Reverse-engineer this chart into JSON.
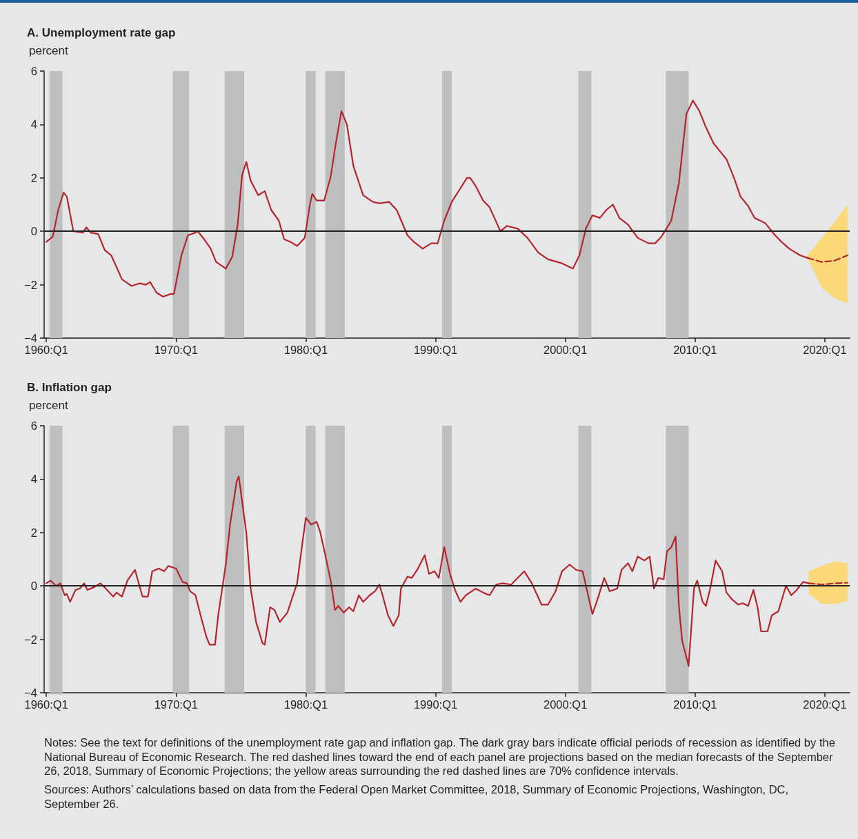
{
  "chart_data": [
    {
      "type": "line",
      "title": "A. Unemployment rate gap",
      "ylabel": "percent",
      "xlim": [
        "1959-11",
        "2021-12"
      ],
      "xticks": [
        {
          "value": "1960-01",
          "label": "1960:Q1"
        },
        {
          "value": "1970-01",
          "label": "1970:Q1"
        },
        {
          "value": "1980-01",
          "label": "1980:Q1"
        },
        {
          "value": "1990-01",
          "label": "1990:Q1"
        },
        {
          "value": "2000-01",
          "label": "2000:Q1"
        },
        {
          "value": "2010-01",
          "label": "2010:Q1"
        },
        {
          "value": "2020-01",
          "label": "2020:Q1"
        }
      ],
      "ylim": [
        -4,
        6
      ],
      "yticks": [
        -4,
        -2,
        0,
        2,
        4,
        6
      ],
      "bands": [
        {
          "axis": "x",
          "from": "1960-04",
          "to": "1961-04",
          "color": "#bcbec0"
        },
        {
          "axis": "x",
          "from": "1969-10",
          "to": "1971-01",
          "color": "#bcbec0"
        },
        {
          "axis": "x",
          "from": "1973-10",
          "to": "1975-04",
          "color": "#bcbec0"
        },
        {
          "axis": "x",
          "from": "1980-01",
          "to": "1980-10",
          "color": "#bcbec0"
        },
        {
          "axis": "x",
          "from": "1981-07",
          "to": "1983-01",
          "color": "#bcbec0"
        },
        {
          "axis": "x",
          "from": "1990-07",
          "to": "1991-04",
          "color": "#bcbec0"
        },
        {
          "axis": "x",
          "from": "2001-01",
          "to": "2002-01",
          "color": "#bcbec0"
        },
        {
          "axis": "x",
          "from": "2007-10",
          "to": "2009-07",
          "color": "#bcbec0"
        }
      ],
      "ref_lines": [
        {
          "axis": "y",
          "value": 0,
          "color": "#231f20"
        }
      ],
      "series": [
        {
          "color": "#b5252d",
          "x": [
            "1960-01",
            "1960-07",
            "1960-12",
            "1961-05",
            "1961-08",
            "1962-02",
            "1962-11",
            "1963-02",
            "1963-06",
            "1964-01",
            "1964-07",
            "1965-01",
            "1965-11",
            "1966-08",
            "1967-03",
            "1967-09",
            "1968-01",
            "1968-07",
            "1969-01",
            "1969-08",
            "1969-11",
            "1970-06",
            "1970-12",
            "1971-07",
            "1971-09",
            "1972-03",
            "1972-09",
            "1973-02",
            "1973-11",
            "1974-05",
            "1974-10",
            "1975-02",
            "1975-06",
            "1975-10",
            "1976-05",
            "1976-11",
            "1977-05",
            "1977-12",
            "1978-05",
            "1978-11",
            "1979-05",
            "1979-12",
            "1980-05",
            "1980-07",
            "1980-11",
            "1981-06",
            "1981-12",
            "1982-05",
            "1982-10",
            "1983-03",
            "1983-09",
            "1984-06",
            "1985-03",
            "1985-09",
            "1986-06",
            "1987-01",
            "1987-11",
            "1988-05",
            "1989-01",
            "1989-09",
            "1990-03",
            "1990-09",
            "1991-04",
            "1991-11",
            "1992-06",
            "1992-09",
            "1993-02",
            "1993-09",
            "1994-03",
            "1995-01",
            "1995-07",
            "1996-05",
            "1997-02",
            "1997-12",
            "1998-09",
            "1999-10",
            "2000-08",
            "2001-02",
            "2001-08",
            "2002-02",
            "2002-09",
            "2003-03",
            "2003-09",
            "2004-03",
            "2004-11",
            "2005-08",
            "2006-06",
            "2006-12",
            "2007-06",
            "2008-03",
            "2008-10",
            "2009-05",
            "2009-11",
            "2010-05",
            "2010-11",
            "2011-06",
            "2011-12",
            "2012-06",
            "2013-01",
            "2013-07",
            "2014-02",
            "2014-08",
            "2015-06",
            "2016-03",
            "2016-09",
            "2017-04",
            "2018-02",
            "2018-09"
          ],
          "values": [
            -0.4,
            -0.2,
            0.8,
            1.45,
            1.3,
            0.0,
            -0.05,
            0.15,
            -0.05,
            -0.1,
            -0.7,
            -0.9,
            -1.8,
            -2.05,
            -1.95,
            -2.0,
            -1.9,
            -2.3,
            -2.45,
            -2.35,
            -2.35,
            -0.9,
            -0.15,
            -0.05,
            0.0,
            -0.3,
            -0.65,
            -1.15,
            -1.4,
            -0.95,
            0.25,
            2.1,
            2.6,
            1.9,
            1.35,
            1.5,
            0.8,
            0.4,
            -0.3,
            -0.4,
            -0.55,
            -0.25,
            1.05,
            1.4,
            1.15,
            1.15,
            2.05,
            3.35,
            4.5,
            4.0,
            2.45,
            1.35,
            1.1,
            1.05,
            1.1,
            0.8,
            -0.15,
            -0.4,
            -0.65,
            -0.45,
            -0.45,
            0.4,
            1.1,
            1.55,
            2.0,
            2.0,
            1.7,
            1.15,
            0.9,
            0.0,
            0.2,
            0.1,
            -0.25,
            -0.8,
            -1.05,
            -1.2,
            -1.4,
            -0.9,
            0.1,
            0.6,
            0.5,
            0.8,
            1.0,
            0.5,
            0.25,
            -0.25,
            -0.45,
            -0.45,
            -0.2,
            0.4,
            1.8,
            4.4,
            4.9,
            4.5,
            3.9,
            3.3,
            3.0,
            2.7,
            2.0,
            1.3,
            0.95,
            0.5,
            0.3,
            -0.15,
            -0.4,
            -0.65,
            -0.9,
            -1.0
          ]
        },
        {
          "color": "#b5252d",
          "line_style": "dashed",
          "x": [
            "2018-09",
            "2019-10",
            "2020-10",
            "2021-10"
          ],
          "values": [
            -1.0,
            -1.15,
            -1.1,
            -0.9
          ],
          "lower": [
            -1.0,
            -2.1,
            -2.5,
            -2.7
          ],
          "upper": [
            -0.9,
            -0.25,
            0.35,
            1.0
          ]
        }
      ]
    },
    {
      "type": "line",
      "title": "B. Inflation gap",
      "ylabel": "percent",
      "xlim": [
        "1959-11",
        "2021-12"
      ],
      "xticks": [
        {
          "value": "1960-01",
          "label": "1960:Q1"
        },
        {
          "value": "1970-01",
          "label": "1970:Q1"
        },
        {
          "value": "1980-01",
          "label": "1980:Q1"
        },
        {
          "value": "1990-01",
          "label": "1990:Q1"
        },
        {
          "value": "2000-01",
          "label": "2000:Q1"
        },
        {
          "value": "2010-01",
          "label": "2010:Q1"
        },
        {
          "value": "2020-01",
          "label": "2020:Q1"
        }
      ],
      "ylim": [
        -4,
        6
      ],
      "yticks": [
        -4,
        -2,
        0,
        2,
        4,
        6
      ],
      "bands": [
        {
          "axis": "x",
          "from": "1960-04",
          "to": "1961-04",
          "color": "#bcbec0"
        },
        {
          "axis": "x",
          "from": "1969-10",
          "to": "1971-01",
          "color": "#bcbec0"
        },
        {
          "axis": "x",
          "from": "1973-10",
          "to": "1975-04",
          "color": "#bcbec0"
        },
        {
          "axis": "x",
          "from": "1980-01",
          "to": "1980-10",
          "color": "#bcbec0"
        },
        {
          "axis": "x",
          "from": "1981-07",
          "to": "1983-01",
          "color": "#bcbec0"
        },
        {
          "axis": "x",
          "from": "1990-07",
          "to": "1991-04",
          "color": "#bcbec0"
        },
        {
          "axis": "x",
          "from": "2001-01",
          "to": "2002-01",
          "color": "#bcbec0"
        },
        {
          "axis": "x",
          "from": "2007-10",
          "to": "2009-07",
          "color": "#bcbec0"
        }
      ],
      "ref_lines": [
        {
          "axis": "y",
          "value": 0,
          "color": "#231f20"
        }
      ],
      "series": [
        {
          "color": "#b5252d",
          "x": [
            "1960-01",
            "1960-05",
            "1960-10",
            "1961-02",
            "1961-06",
            "1961-08",
            "1961-11",
            "1962-04",
            "1962-08",
            "1962-12",
            "1963-03",
            "1963-09",
            "1964-03",
            "1964-08",
            "1965-03",
            "1965-06",
            "1965-11",
            "1966-04",
            "1966-11",
            "1967-06",
            "1967-11",
            "1968-03",
            "1968-09",
            "1969-02",
            "1969-06",
            "1970-01",
            "1970-07",
            "1970-11",
            "1971-02",
            "1971-07",
            "1971-12",
            "1972-05",
            "1972-08",
            "1973-01",
            "1973-04",
            "1973-11",
            "1974-03",
            "1974-09",
            "1974-11",
            "1975-06",
            "1975-10",
            "1976-03",
            "1976-09",
            "1976-11",
            "1977-04",
            "1977-08",
            "1978-01",
            "1978-08",
            "1978-12",
            "1979-05",
            "1979-09",
            "1980-01",
            "1980-06",
            "1980-11",
            "1981-02",
            "1981-06",
            "1981-12",
            "1982-04",
            "1982-07",
            "1982-12",
            "1983-05",
            "1983-09",
            "1984-02",
            "1984-06",
            "1984-12",
            "1985-05",
            "1985-09",
            "1985-12",
            "1986-05",
            "1986-10",
            "1987-03",
            "1987-05",
            "1987-11",
            "1988-03",
            "1988-08",
            "1989-03",
            "1989-07",
            "1989-12",
            "1990-04",
            "1990-09",
            "1991-02",
            "1991-07",
            "1991-12",
            "1992-05",
            "1993-02",
            "1993-09",
            "1994-03",
            "1994-09",
            "1995-03",
            "1995-11",
            "1996-05",
            "1996-11",
            "1997-06",
            "1998-03",
            "1998-09",
            "1999-04",
            "1999-10",
            "2000-05",
            "2000-11",
            "2001-05",
            "2002-02",
            "2002-06",
            "2003-01",
            "2003-06",
            "2004-01",
            "2004-05",
            "2004-11",
            "2005-03",
            "2005-08",
            "2006-02",
            "2006-07",
            "2006-11",
            "2007-03",
            "2007-08",
            "2007-11",
            "2008-03",
            "2008-07",
            "2008-10",
            "2009-01",
            "2009-07",
            "2009-12",
            "2010-03",
            "2010-08",
            "2010-11",
            "2011-03",
            "2011-08",
            "2012-02",
            "2012-06",
            "2012-11",
            "2013-05",
            "2013-09",
            "2014-02",
            "2014-07",
            "2014-11",
            "2015-02",
            "2015-08",
            "2015-12",
            "2016-06",
            "2017-01",
            "2017-06",
            "2017-11",
            "2018-05",
            "2018-10"
          ],
          "values": [
            0.1,
            0.2,
            0.0,
            0.1,
            -0.35,
            -0.3,
            -0.6,
            -0.15,
            -0.1,
            0.1,
            -0.15,
            -0.05,
            0.1,
            -0.1,
            -0.4,
            -0.25,
            -0.4,
            0.2,
            0.6,
            -0.4,
            -0.4,
            0.55,
            0.65,
            0.55,
            0.75,
            0.65,
            0.15,
            0.1,
            -0.2,
            -0.35,
            -1.15,
            -1.9,
            -2.2,
            -2.2,
            -1.1,
            0.8,
            2.3,
            3.9,
            4.1,
            2.0,
            -0.1,
            -1.35,
            -2.15,
            -2.2,
            -0.8,
            -0.9,
            -1.35,
            -1.0,
            -0.5,
            0.1,
            1.35,
            2.55,
            2.3,
            2.4,
            2.05,
            1.35,
            0.2,
            -0.9,
            -0.75,
            -1.0,
            -0.8,
            -0.95,
            -0.35,
            -0.6,
            -0.35,
            -0.2,
            0.05,
            -0.35,
            -1.1,
            -1.5,
            -1.1,
            -0.1,
            0.35,
            0.3,
            0.6,
            1.15,
            0.45,
            0.55,
            0.3,
            1.45,
            0.5,
            -0.15,
            -0.6,
            -0.35,
            -0.1,
            -0.25,
            -0.35,
            0.05,
            0.1,
            0.05,
            0.3,
            0.55,
            0.1,
            -0.7,
            -0.7,
            -0.2,
            0.55,
            0.8,
            0.6,
            0.55,
            -1.05,
            -0.6,
            0.3,
            -0.2,
            -0.1,
            0.6,
            0.85,
            0.55,
            1.1,
            0.95,
            1.1,
            -0.1,
            0.3,
            0.25,
            1.3,
            1.45,
            1.85,
            -0.75,
            -2.05,
            -3.0,
            -0.1,
            0.2,
            -0.6,
            -0.75,
            -0.1,
            0.95,
            0.55,
            -0.25,
            -0.5,
            -0.7,
            -0.65,
            -0.75,
            -0.15,
            -0.85,
            -1.7,
            -1.7,
            -1.1,
            -0.95,
            0.0,
            -0.35,
            -0.15,
            0.15,
            0.1
          ]
        },
        {
          "color": "#b5252d",
          "line_style": "dashed",
          "x": [
            "2018-10",
            "2019-10",
            "2020-11",
            "2021-10"
          ],
          "values": [
            0.1,
            0.05,
            0.1,
            0.12
          ],
          "lower": [
            -0.3,
            -0.67,
            -0.67,
            -0.57
          ],
          "upper": [
            0.55,
            0.75,
            0.93,
            0.83
          ]
        }
      ],
      "annotations": [
        "Notes: See the text for definitions of the unemployment rate gap and inflation gap. The dark gray bars indicate official periods of recession as identified by the National Bureau of Economic Research. The red dashed lines toward the end of each panel are projections based on the median forecasts of the September 26, 2018, Summary of Economic Projections; the yellow areas surrounding the red dashed lines are 70% confidence intervals.",
        "Sources: Authors’ calculations based on data from the Federal Open Market Committee, 2018, Summary of Economic Projections, Washington, DC, September 26."
      ]
    }
  ]
}
